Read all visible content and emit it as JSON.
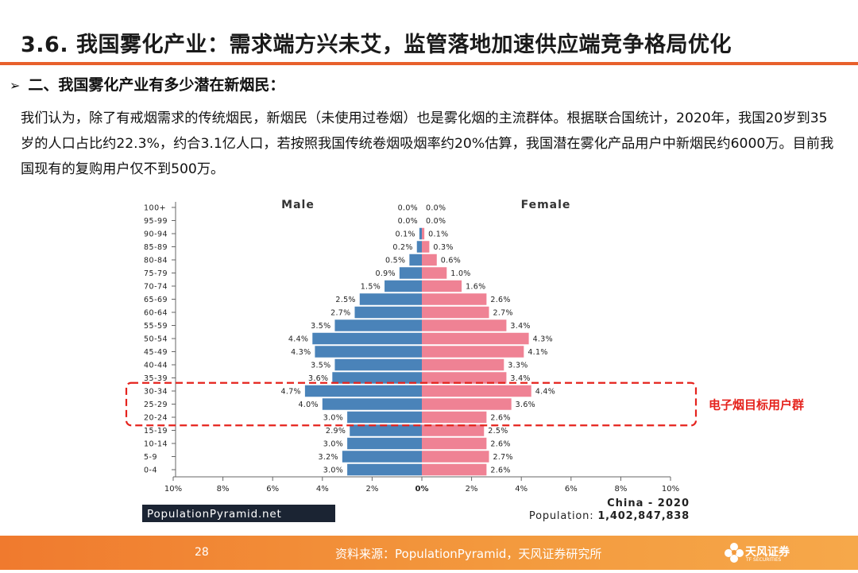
{
  "header": {
    "title": "3.6. 我国雾化产业：需求端方兴未艾，监管落地加速供应端竞争格局优化",
    "subtitle": "二、我国雾化产业有多少潜在新烟民：",
    "paragraph": "我们认为，除了有戒烟需求的传统烟民，新烟民（未使用过卷烟）也是雾化烟的主流群体。根据联合国统计，2020年，我国20岁到35岁的人口占比约22.3%，约合3.1亿人口，若按照我国传统卷烟吸烟率约20%估算，我国潜在雾化产品用户中新烟民约6000万。目前我国现有的复购用户仅不到500万。"
  },
  "colors": {
    "male": "#4a83b9",
    "female": "#ef8294",
    "accent": "#e8602c",
    "annotation": "#e5231d"
  },
  "chart_data": {
    "type": "bar",
    "orientation": "horizontal-pyramid",
    "categories": [
      "100+",
      "95-99",
      "90-94",
      "85-89",
      "80-84",
      "75-79",
      "70-74",
      "65-69",
      "60-64",
      "55-59",
      "50-54",
      "45-49",
      "40-44",
      "35-39",
      "30-34",
      "25-29",
      "20-24",
      "15-19",
      "10-14",
      "5-9",
      "0-4"
    ],
    "series": [
      {
        "name": "Male",
        "values": [
          0.0,
          0.0,
          0.1,
          0.2,
          0.5,
          0.9,
          1.5,
          2.5,
          2.7,
          3.5,
          4.4,
          4.3,
          3.5,
          3.6,
          4.7,
          4.0,
          3.0,
          2.9,
          3.0,
          3.2,
          3.0
        ]
      },
      {
        "name": "Female",
        "values": [
          0.0,
          0.0,
          0.1,
          0.3,
          0.6,
          1.0,
          1.6,
          2.6,
          2.7,
          3.4,
          4.3,
          4.1,
          3.3,
          3.4,
          4.4,
          3.6,
          2.6,
          2.5,
          2.6,
          2.7,
          2.6
        ]
      }
    ],
    "x_ticks": [
      "10%",
      "8%",
      "6%",
      "4%",
      "2%",
      "0%",
      "2%",
      "4%",
      "6%",
      "8%",
      "10%"
    ],
    "xlim": [
      -10,
      10
    ],
    "highlight": {
      "categories": [
        "30-34",
        "25-29",
        "20-24"
      ],
      "label": "电子烟目标用户群"
    },
    "branding": "PopulationPyramid.net",
    "country_label": "China - 2020",
    "population_label": "Population:",
    "population_value": "1,402,847,838"
  },
  "footer": {
    "page": "28",
    "source": "资料来源：PopulationPyramid，天风证券研究所",
    "logo_text": "天风证券",
    "logo_small": "TF SECURITIES"
  }
}
